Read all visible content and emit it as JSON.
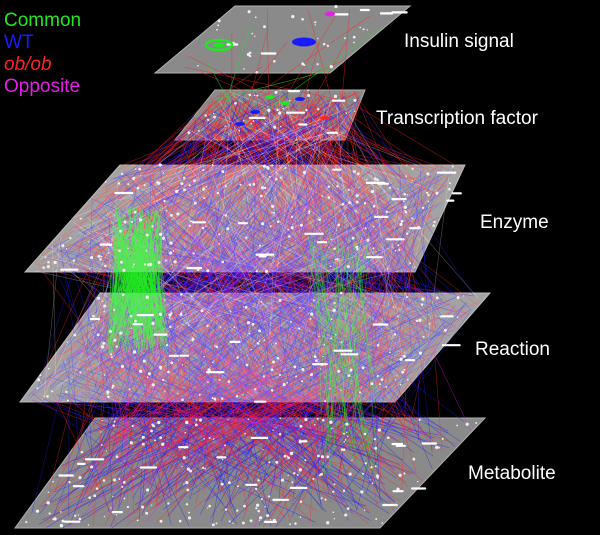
{
  "legend": [
    {
      "label": "Common",
      "color": "#22e622",
      "italic": false
    },
    {
      "label": "WT",
      "color": "#1a1aff",
      "italic": false
    },
    {
      "label": "ob/ob",
      "color": "#ff2222",
      "italic": true
    },
    {
      "label": "Opposite",
      "color": "#e61ee6",
      "italic": false
    }
  ],
  "layers": [
    {
      "id": "insulin",
      "label": "Insulin signal"
    },
    {
      "id": "tf",
      "label": "Transcription factor"
    },
    {
      "id": "enzyme",
      "label": "Enzyme"
    },
    {
      "id": "reaction",
      "label": "Reaction"
    },
    {
      "id": "metabolite",
      "label": "Metabolite"
    }
  ],
  "colors": {
    "background": "#000000",
    "plane": "#8a8a8a",
    "common": "#22e622",
    "wt": "#1a1aff",
    "obob": "#ff2222",
    "opposite": "#e61ee6"
  }
}
